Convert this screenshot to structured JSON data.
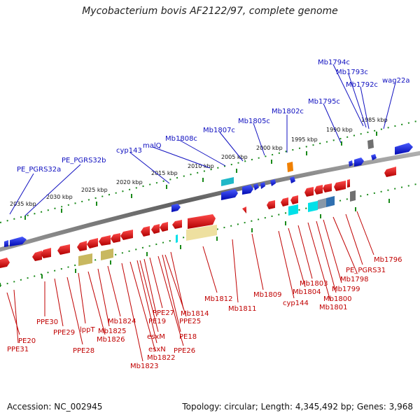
{
  "title": "Mycobacterium bovis AF2122/97, complete genome",
  "footer": {
    "accession": "Accession: NC_002945",
    "summary": "Topology: circular; Length: 4,345,492 bp; Genes: 3,968"
  },
  "colors": {
    "forward_gene": "#0a14e6",
    "reverse_gene": "#e60a0a",
    "backbone": "#808080",
    "tick": "#1a8a1a",
    "top_label": "#1010c0",
    "bottom_label": "#c00000"
  },
  "scale_labels": [
    "2035 kbp",
    "2030 kbp",
    "2025 kbp",
    "2020 kbp",
    "2015 kbp",
    "2010 kbp",
    "2005 kbp",
    "2000 kbp",
    "1995 kbp",
    "1990 kbp",
    "1985 kbp"
  ],
  "top_labels": [
    "PE_PGRS32a",
    "PE_PGRS32b",
    "cyp143",
    "malQ",
    "Mb1808c",
    "Mb1807c",
    "Mb1805c",
    "Mb1802c",
    "Mb1795c",
    "Mb1794c",
    "Mb1793c",
    "Mb1792c",
    "wag22a"
  ],
  "bottom_labels": [
    "PE20",
    "PPE31",
    "PPE30",
    "PPE29",
    "PPE28",
    "lppT",
    "Mb1826",
    "Mb1825",
    "Mb1824",
    "Mb1823",
    "Mb1822",
    "esxN",
    "esxM",
    "PE19",
    "PPE27",
    "Mb1814",
    "PPE25",
    "PE18",
    "PPE26",
    "Mb1812",
    "Mb1811",
    "Mb1809",
    "cyp144",
    "Mb1804",
    "Mb1803",
    "Mb1801",
    "Mb1800",
    "Mb1799",
    "Mb1798",
    "PE_PGRS31",
    "Mb1796"
  ]
}
